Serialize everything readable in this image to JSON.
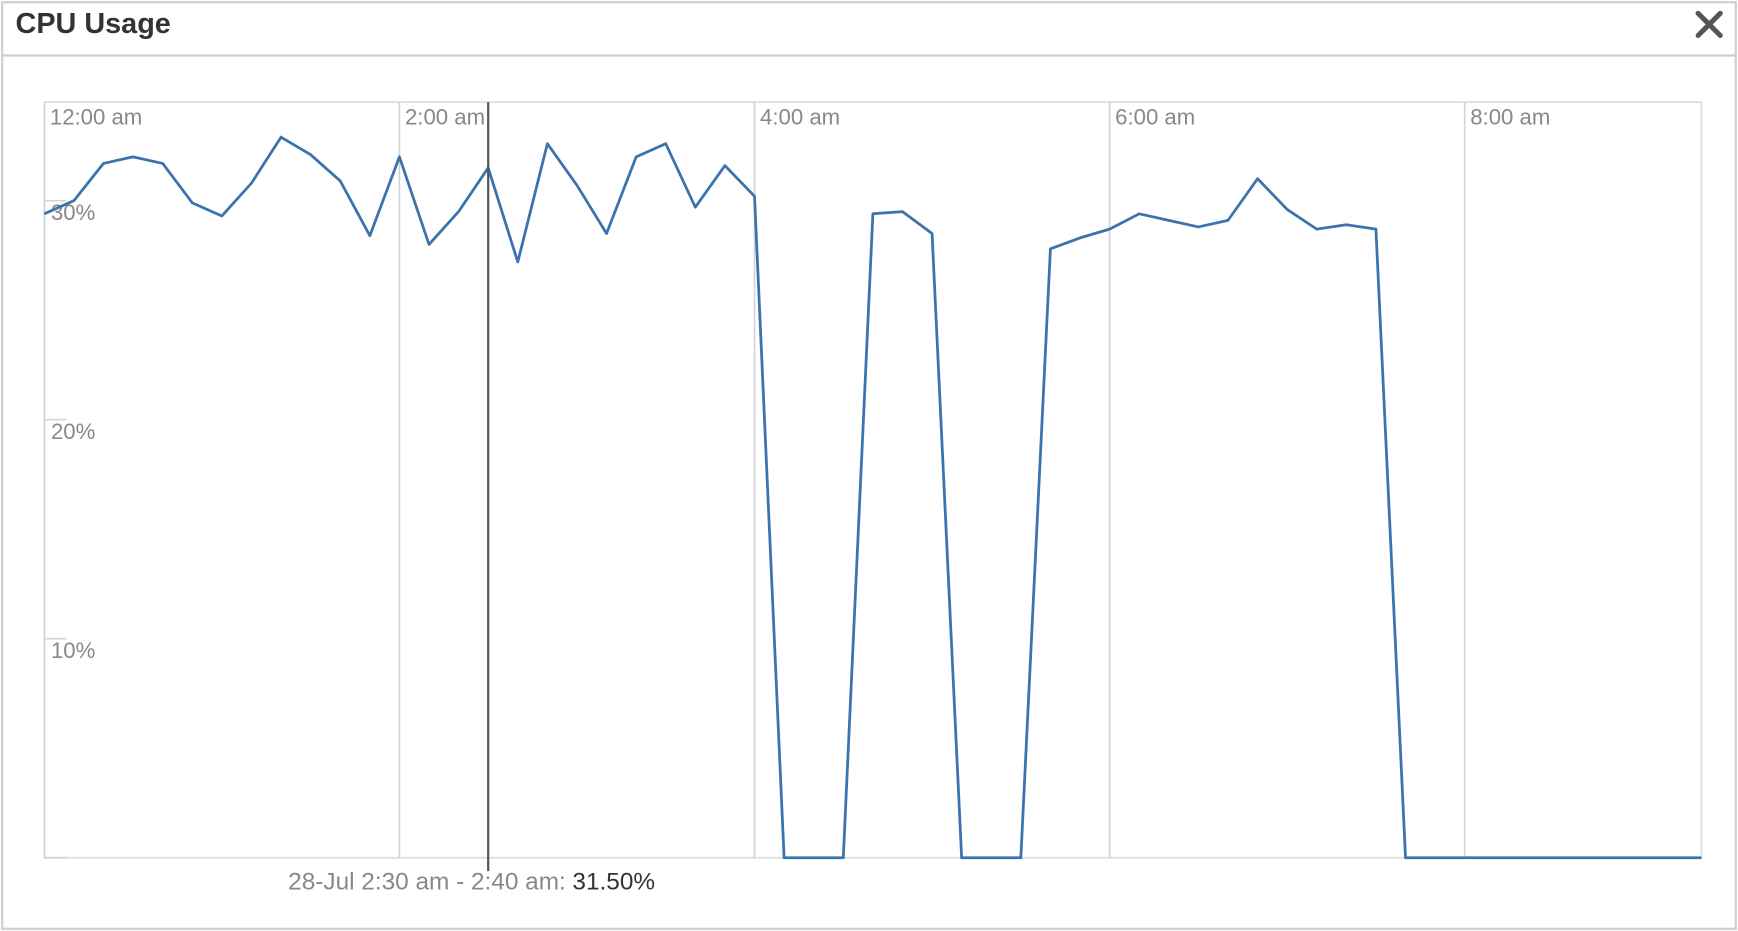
{
  "chart_data": {
    "type": "line",
    "title": "CPU Usage",
    "color": "#3b73ad",
    "x": [
      0,
      10,
      20,
      30,
      40,
      50,
      60,
      70,
      80,
      90,
      100,
      110,
      120,
      130,
      140,
      150,
      160,
      170,
      180,
      190,
      200,
      210,
      220,
      230,
      240,
      250,
      260,
      270,
      280,
      290,
      300,
      310,
      320,
      330,
      340,
      350,
      360,
      370,
      380,
      390,
      400,
      410,
      420,
      430,
      440,
      450,
      460,
      470,
      480,
      490,
      500,
      510,
      520,
      530,
      540,
      550,
      560
    ],
    "values": [
      29.4,
      30.0,
      31.7,
      32.0,
      31.7,
      29.9,
      29.3,
      30.8,
      32.9,
      32.1,
      30.9,
      28.4,
      32.0,
      28.0,
      29.5,
      31.5,
      27.2,
      32.6,
      30.7,
      28.5,
      32.0,
      32.6,
      29.7,
      31.6,
      30.2,
      0,
      0,
      0,
      29.4,
      29.5,
      28.5,
      0,
      0,
      0,
      27.8,
      28.3,
      28.7,
      29.4,
      29.1,
      28.8,
      29.1,
      31.0,
      29.6,
      28.7,
      28.9,
      28.7,
      0,
      0,
      0,
      0,
      0,
      0,
      0,
      0,
      0,
      0,
      0
    ],
    "xlim": [
      0,
      560
    ],
    "xticks": [
      {
        "value": 0,
        "label": "12:00 am"
      },
      {
        "value": 120,
        "label": "2:00 am"
      },
      {
        "value": 240,
        "label": "4:00 am"
      },
      {
        "value": 360,
        "label": "6:00 am"
      },
      {
        "value": 480,
        "label": "8:00 am"
      }
    ],
    "ylim": [
      0,
      34.5
    ],
    "yticks": [
      {
        "value": 10,
        "label": "10%"
      },
      {
        "value": 20,
        "label": "20%"
      },
      {
        "value": 30,
        "label": "30%"
      }
    ],
    "grid": true,
    "hover": {
      "x": 150,
      "label": "28-Jul 2:30 am - 2:40 am:",
      "value_label": "31.50%"
    }
  }
}
